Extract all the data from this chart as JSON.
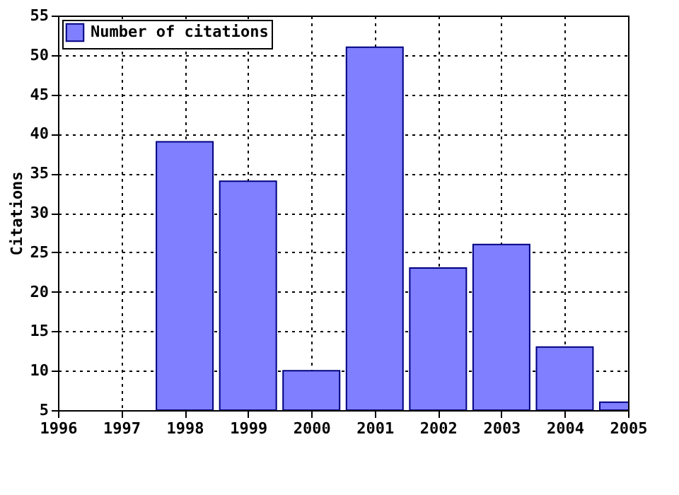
{
  "chart_data": {
    "type": "bar",
    "x": [
      1998,
      1999,
      2000,
      2001,
      2002,
      2003,
      2004,
      2005
    ],
    "ylabel": "Citations",
    "series": [
      {
        "name": "Number of citations",
        "color": "#7f7fff",
        "values": [
          39,
          34,
          10,
          51,
          23,
          26,
          13,
          6
        ]
      }
    ],
    "xlim": [
      1996,
      2005
    ],
    "xticks": [
      1996,
      1997,
      1998,
      1999,
      2000,
      2001,
      2002,
      2003,
      2004,
      2005
    ],
    "ylim": [
      5,
      55
    ],
    "yticks": [
      5,
      10,
      15,
      20,
      25,
      30,
      35,
      40,
      45,
      50,
      55
    ],
    "grid": true,
    "legend": "top left"
  }
}
